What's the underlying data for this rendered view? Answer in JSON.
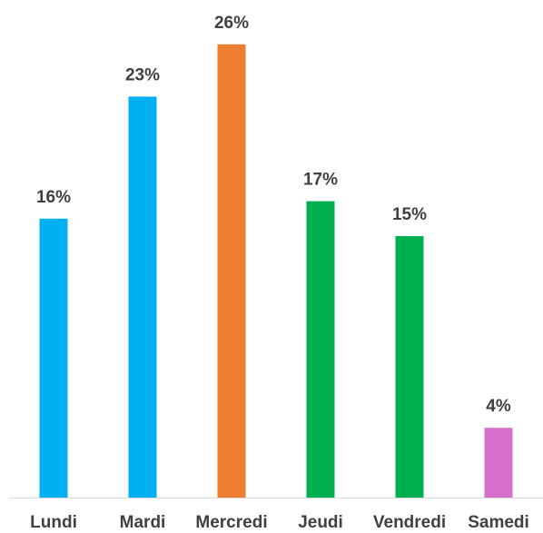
{
  "chart_data": {
    "type": "bar",
    "categories": [
      "Lundi",
      "Mardi",
      "Mercredi",
      "Jeudi",
      "Vendredi",
      "Samedi"
    ],
    "values": [
      16,
      23,
      26,
      17,
      15,
      4
    ],
    "value_labels": [
      "16%",
      "23%",
      "26%",
      "17%",
      "15%",
      "4%"
    ],
    "colors": [
      "#00B0F0",
      "#00B0F0",
      "#ED7D31",
      "#00B050",
      "#00B050",
      "#D86ECC"
    ],
    "axis_color": "#D9D9D9",
    "label_color": "#404040",
    "ylim": [
      0,
      30
    ],
    "grid": false,
    "legend": "none",
    "title": "",
    "xlabel": "",
    "ylabel": ""
  }
}
